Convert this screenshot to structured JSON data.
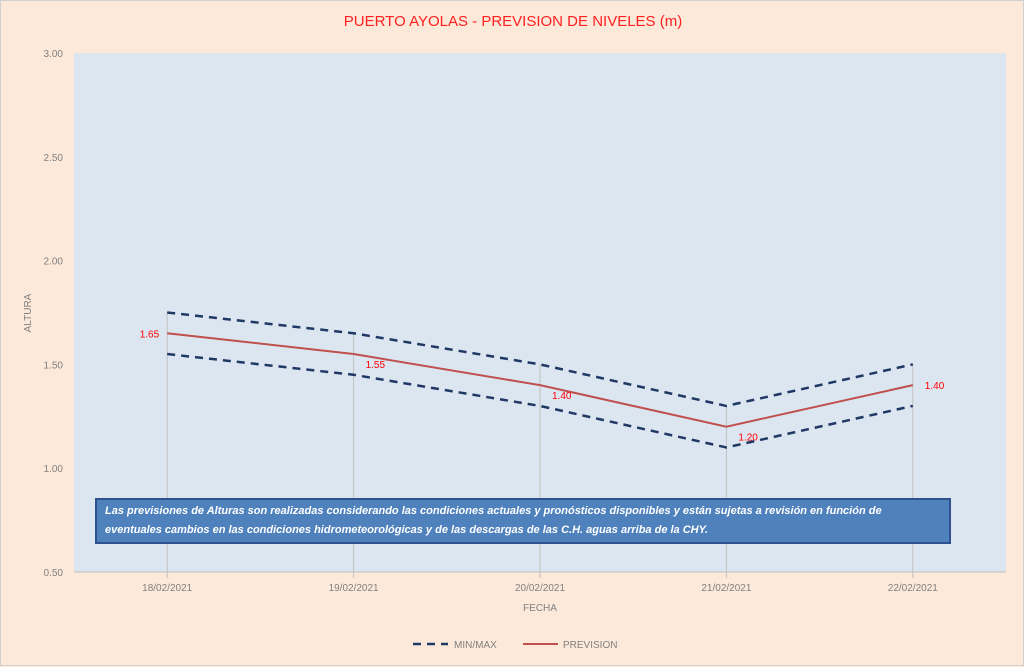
{
  "chart_data": {
    "type": "line",
    "title": "PUERTO AYOLAS - PREVISION DE NIVELES (m)",
    "xlabel": "FECHA",
    "ylabel": "ALTURA",
    "ylim": [
      0.5,
      3.0
    ],
    "yticks": [
      "0.50",
      "1.00",
      "1.50",
      "2.00",
      "2.50",
      "3.00"
    ],
    "categories": [
      "18/02/2021",
      "19/02/2021",
      "20/02/2021",
      "21/02/2021",
      "22/02/2021"
    ],
    "series": [
      {
        "name": "MIN/MAX",
        "role": "max",
        "values": [
          1.75,
          1.65,
          1.5,
          1.3,
          1.5
        ],
        "color": "#1f3864"
      },
      {
        "name": "MIN/MAX",
        "role": "min",
        "values": [
          1.55,
          1.45,
          1.3,
          1.1,
          1.3
        ],
        "color": "#1f3864"
      },
      {
        "name": "PREVISION",
        "values": [
          1.65,
          1.55,
          1.4,
          1.2,
          1.4
        ],
        "color": "#c0504d"
      }
    ],
    "data_labels": [
      "1.65",
      "1.55",
      "1.40",
      "1.20",
      "1.40"
    ],
    "legend": [
      "MIN/MAX",
      "PREVISION"
    ],
    "legend_position": "bottom",
    "note": "Las previsiones de Alturas son realizadas considerando las condiciones actuales y pronósticos disponibles y están sujetas a revisión en función de eventuales cambios en las condiciones hidrometeorológicas y de las descargas de las C.H. aguas arriba de la CHY."
  }
}
